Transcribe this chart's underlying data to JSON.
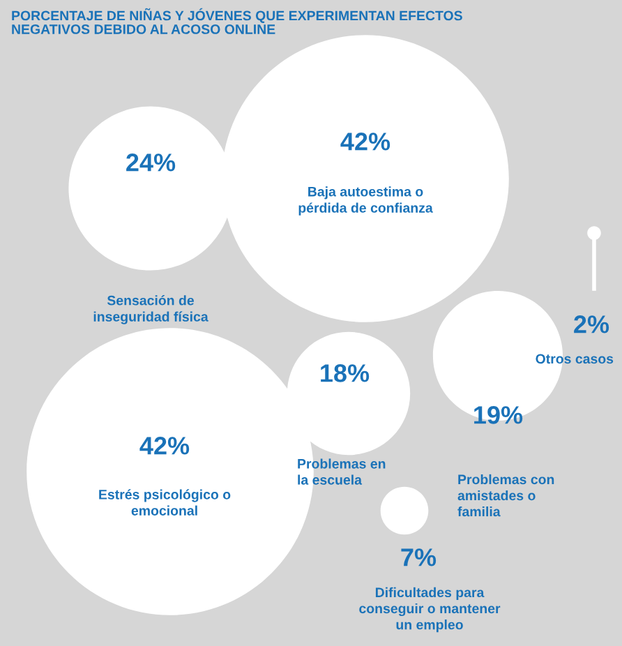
{
  "chart_data": {
    "type": "other",
    "title": "PORCENTAJE DE NIÑAS Y JÓVENES QUE EXPERIMENTAN EFECTOS\nNEGATIVOS DEBIDO AL ACOSO ONLINE",
    "categories": [
      "Sensación de\ninseguridad física",
      "Baja autoestima o\npérdida de confianza",
      "Otros casos",
      "Problemas con\namistades o\nfamilia",
      "Estrés psicológico o\nemocional",
      "Problemas en\nla escuela",
      "Dificultades para\nconseguir o mantener\nun empleo"
    ],
    "values": [
      24,
      42,
      2,
      19,
      42,
      18,
      7
    ],
    "value_labels": [
      "24%",
      "42%",
      "2%",
      "19%",
      "42%",
      "18%",
      "7%"
    ],
    "colors": [
      "#ffffff",
      "#ffffff",
      "#ffffff",
      "#ffffff",
      "#ffffff",
      "#ffffff",
      "#ffffff"
    ]
  }
}
